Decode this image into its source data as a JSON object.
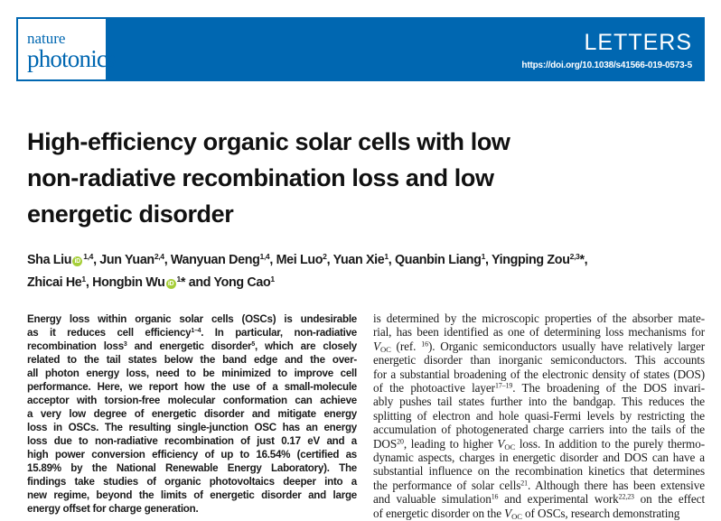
{
  "header": {
    "journal_line1": "nature",
    "journal_line2": "photonics",
    "section": "LETTERS",
    "doi": "https://doi.org/10.1038/s41566-019-0573-5",
    "brand_color": "#0067b1",
    "orcid_color": "#a6ce39"
  },
  "title": {
    "lines": [
      "High-efficiency organic solar cells with low",
      "non-radiative recombination loss and low",
      "energetic disorder"
    ]
  },
  "authors": {
    "lines": [
      [
        [
          "Sha Liu",
          ""
        ],
        [
          "orcid",
          "icon"
        ],
        [
          "1,4",
          "sup"
        ],
        [
          ", Jun Yuan",
          ""
        ],
        [
          "2,4",
          "sup"
        ],
        [
          ", Wanyuan Deng",
          ""
        ],
        [
          "1,4",
          "sup"
        ],
        [
          ", Mei Luo",
          ""
        ],
        [
          "2",
          "sup"
        ],
        [
          ", Yuan Xie",
          ""
        ],
        [
          "1",
          "sup"
        ],
        [
          ", Quanbin Liang",
          ""
        ],
        [
          "1",
          "sup"
        ],
        [
          ", Yingping Zou",
          ""
        ],
        [
          "2,3",
          "sup"
        ],
        [
          "*,",
          ""
        ]
      ],
      [
        [
          "Zhicai He",
          ""
        ],
        [
          "1",
          "sup"
        ],
        [
          ", Hongbin Wu",
          ""
        ],
        [
          "orcid",
          "icon"
        ],
        [
          "1",
          "sup"
        ],
        [
          "* and Yong Cao",
          ""
        ],
        [
          "1",
          "sup"
        ]
      ]
    ]
  },
  "abstract": {
    "lines": [
      [
        [
          "Energy loss within organic solar cells (OSCs) is undesirable",
          ""
        ]
      ],
      [
        [
          "as it reduces cell efficiency",
          ""
        ],
        [
          "1–4",
          "sup"
        ],
        [
          ". In particular, non-radiative",
          ""
        ]
      ],
      [
        [
          "recombination loss",
          ""
        ],
        [
          "3",
          "sup"
        ],
        [
          " and energetic disorder",
          ""
        ],
        [
          "5",
          "sup"
        ],
        [
          ", which are closely",
          ""
        ]
      ],
      [
        [
          "related to the tail states below the band edge and the over-",
          ""
        ]
      ],
      [
        [
          "all photon energy loss, need to be minimized to improve cell",
          ""
        ]
      ],
      [
        [
          "performance. Here, we report how the use of a small-molecule",
          ""
        ]
      ],
      [
        [
          "acceptor with torsion-free molecular conformation can achieve",
          ""
        ]
      ],
      [
        [
          "a very low degree of energetic disorder and mitigate energy",
          ""
        ]
      ],
      [
        [
          "loss in OSCs. The resulting single-junction OSC has an energy",
          ""
        ]
      ],
      [
        [
          "loss due to non-radiative recombination of just 0.17 eV and a",
          ""
        ]
      ],
      [
        [
          "high power conversion efficiency of up to 16.54% (certified as",
          ""
        ]
      ],
      [
        [
          "15.89% by the National Renewable Energy Laboratory). The",
          ""
        ]
      ],
      [
        [
          "findings take studies of organic photovoltaics deeper into a",
          ""
        ]
      ],
      [
        [
          "new regime, beyond the limits of energetic disorder and large",
          ""
        ]
      ],
      [
        [
          "energy offset for charge generation.",
          ""
        ]
      ]
    ]
  },
  "body": {
    "lines": [
      [
        [
          "is determined by the microscopic properties of the absorber mate-",
          ""
        ]
      ],
      [
        [
          "rial, has been identified as one of determining loss mechanisms for",
          ""
        ]
      ],
      [
        [
          "V",
          "i"
        ],
        [
          "OC",
          "sub"
        ],
        [
          " (ref. ",
          ""
        ],
        [
          "16",
          "sup"
        ],
        [
          "). Organic semiconductors usually have relatively larger",
          ""
        ]
      ],
      [
        [
          "energetic disorder than inorganic semiconductors. This accounts",
          ""
        ]
      ],
      [
        [
          "for a substantial broadening of the electronic density of states (DOS)",
          ""
        ]
      ],
      [
        [
          "of the photoactive layer",
          ""
        ],
        [
          "17–19",
          "sup"
        ],
        [
          ". The broadening of the DOS invari-",
          ""
        ]
      ],
      [
        [
          "ably pushes tail states further into the bandgap. This reduces the",
          ""
        ]
      ],
      [
        [
          "splitting of electron and hole quasi-Fermi levels by restricting the",
          ""
        ]
      ],
      [
        [
          "accumulation of photogenerated charge carriers into the tails of the",
          ""
        ]
      ],
      [
        [
          "DOS",
          ""
        ],
        [
          "20",
          "sup"
        ],
        [
          ", leading to higher ",
          ""
        ],
        [
          "V",
          "i"
        ],
        [
          "OC",
          "sub"
        ],
        [
          " loss. In addition to the purely thermo-",
          ""
        ]
      ],
      [
        [
          "dynamic aspects, charges in energetic disorder and DOS can have a",
          ""
        ]
      ],
      [
        [
          "substantial influence on the recombination kinetics that determines",
          ""
        ]
      ],
      [
        [
          "the performance of solar cells",
          ""
        ],
        [
          "21",
          "sup"
        ],
        [
          ". Although there has been extensive",
          ""
        ]
      ],
      [
        [
          "and valuable simulation",
          ""
        ],
        [
          "16",
          "sup"
        ],
        [
          " and experimental work",
          ""
        ],
        [
          "22,23",
          "sup"
        ],
        [
          " on the effect",
          ""
        ]
      ],
      [
        [
          "of energetic disorder on the ",
          ""
        ],
        [
          "V",
          "i"
        ],
        [
          "OC",
          "sub"
        ],
        [
          " of OSCs, research demonstrating",
          ""
        ]
      ]
    ]
  }
}
